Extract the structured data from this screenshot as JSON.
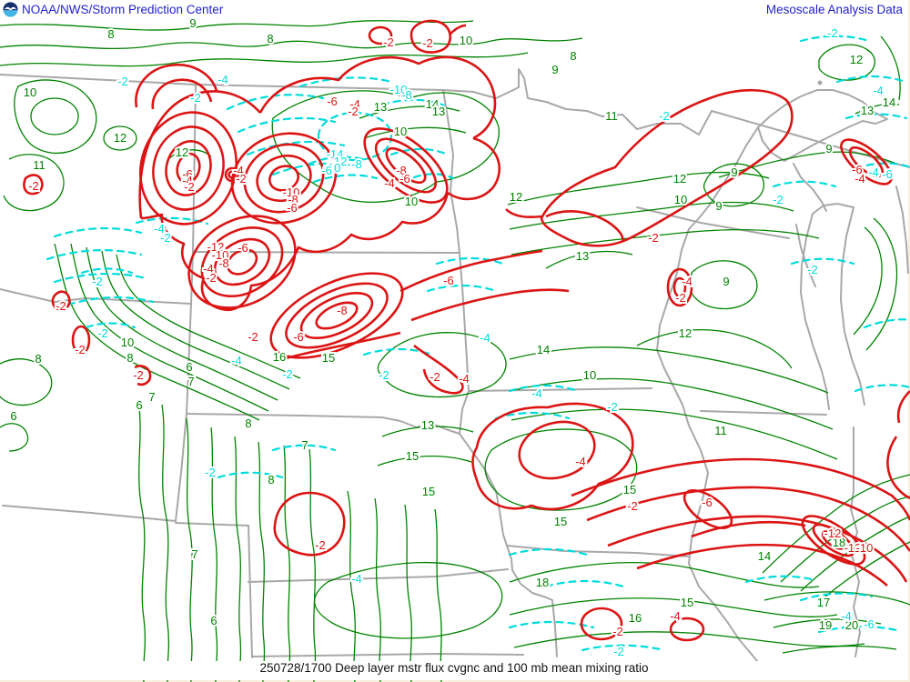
{
  "header": {
    "title": "NOAA/NWS/Storm Prediction Center",
    "right_title": "Mesoscale Analysis Data",
    "logo": "noaa-logo"
  },
  "caption": "250728/1700 Deep layer mstr flux cvgnc and 100 mb mean mixing ratio",
  "fields": {
    "red_solid_contours": "Deep layer moisture flux convergence",
    "green_solid_contours": "100 mb mean mixing ratio",
    "cyan_dashed_contours": "moisture flux divergence"
  },
  "colors": {
    "page_background": "#f8eedd",
    "map_background": "#ffffff",
    "header_blue": "#2222cc",
    "contour_green": "#008300",
    "contour_red": "#dc1414",
    "contour_cyan": "#00dcdc",
    "state_border_gray": "#a8a8a8",
    "caption_black": "#111111",
    "logo_navy": "#16306e",
    "logo_lightblue": "#45b4e6"
  },
  "contour_labels": {
    "green": [
      [
        "8",
        122,
        38
      ],
      [
        "9",
        212,
        26
      ],
      [
        "8",
        297,
        43
      ],
      [
        "10",
        512,
        45
      ],
      [
        "8",
        630,
        62
      ],
      [
        "9",
        610,
        77
      ],
      [
        "12",
        941,
        66
      ],
      [
        "10",
        33,
        102
      ],
      [
        "14",
        977,
        113
      ],
      [
        "13",
        953,
        122
      ],
      [
        "13",
        418,
        118
      ],
      [
        "14",
        475,
        115
      ],
      [
        "13",
        482,
        123
      ],
      [
        "11",
        672,
        128
      ],
      [
        "12",
        132,
        152
      ],
      [
        "10",
        440,
        145
      ],
      [
        "9",
        911,
        164
      ],
      [
        "12",
        200,
        168
      ],
      [
        "11",
        43,
        182
      ],
      [
        "9",
        807,
        190
      ],
      [
        "12",
        747,
        197
      ],
      [
        "10",
        748,
        220
      ],
      [
        "12",
        567,
        217
      ],
      [
        "10",
        452,
        222
      ],
      [
        "9",
        790,
        227
      ],
      [
        "13",
        640,
        282
      ],
      [
        "9",
        798,
        310
      ],
      [
        "12",
        753,
        367
      ],
      [
        "15",
        361,
        394
      ],
      [
        "16",
        307,
        393
      ],
      [
        "14",
        597,
        385
      ],
      [
        "8",
        42,
        395
      ],
      [
        "10",
        140,
        377
      ],
      [
        "8",
        143,
        394
      ],
      [
        "6",
        208,
        404
      ],
      [
        "7",
        210,
        420
      ],
      [
        "7",
        167,
        437
      ],
      [
        "6",
        153,
        446
      ],
      [
        "6",
        15,
        458
      ],
      [
        "8",
        273,
        466
      ],
      [
        "13",
        470,
        468
      ],
      [
        "7",
        335,
        490
      ],
      [
        "15",
        453,
        502
      ],
      [
        "8",
        298,
        528
      ],
      [
        "15",
        471,
        541
      ],
      [
        "15",
        692,
        539
      ],
      [
        "15",
        616,
        574
      ],
      [
        "14",
        840,
        612
      ],
      [
        "11",
        792,
        474
      ],
      [
        "10",
        648,
        413
      ],
      [
        "18",
        922,
        597
      ],
      [
        "18",
        596,
        641
      ],
      [
        "17",
        905,
        663
      ],
      [
        "19",
        907,
        688
      ],
      [
        "20",
        936,
        688
      ],
      [
        "15",
        755,
        663
      ],
      [
        "16",
        698,
        680
      ],
      [
        "7",
        214,
        610
      ],
      [
        "6",
        235,
        683
      ]
    ],
    "red": [
      [
        "-2",
        427,
        47
      ],
      [
        "-2",
        470,
        48
      ],
      [
        "-6",
        365,
        112
      ],
      [
        "-4",
        390,
        115
      ],
      [
        "-2",
        388,
        123
      ],
      [
        "-8",
        441,
        188
      ],
      [
        "-6",
        445,
        197
      ],
      [
        "-4",
        428,
        202
      ],
      [
        "-6",
        206,
        192
      ],
      [
        "-4",
        206,
        199
      ],
      [
        "-2",
        208,
        206
      ],
      [
        "-10",
        320,
        212
      ],
      [
        "-8",
        322,
        220
      ],
      [
        "-6",
        321,
        229
      ],
      [
        "-12",
        237,
        272
      ],
      [
        "-10",
        242,
        281
      ],
      [
        "-8",
        246,
        290
      ],
      [
        "-6",
        267,
        273
      ],
      [
        "-4",
        229,
        296
      ],
      [
        "-2",
        232,
        306
      ],
      [
        "-4",
        262,
        188
      ],
      [
        "-2",
        265,
        197
      ],
      [
        "-2",
        37,
        205
      ],
      [
        "-2",
        67,
        337
      ],
      [
        "-2",
        88,
        385
      ],
      [
        "-2",
        152,
        413
      ],
      [
        "-8",
        376,
        342
      ],
      [
        "-6",
        328,
        371
      ],
      [
        "-2",
        278,
        371
      ],
      [
        "-6",
        493,
        309
      ],
      [
        "-4",
        510,
        417
      ],
      [
        "-2",
        478,
        415
      ],
      [
        "-2",
        718,
        262
      ],
      [
        "-4",
        755,
        310
      ],
      [
        "-2",
        748,
        328
      ],
      [
        "-4",
        638,
        508
      ],
      [
        "-2",
        695,
        557
      ],
      [
        "-2",
        352,
        600
      ],
      [
        "-6",
        777,
        553
      ],
      [
        "-4",
        742,
        678
      ],
      [
        "-2",
        679,
        695
      ],
      [
        "-12",
        915,
        587
      ],
      [
        "-12",
        937,
        603
      ],
      [
        "-10",
        950,
        603
      ],
      [
        "-6",
        942,
        187
      ],
      [
        "-4",
        945,
        197
      ]
    ],
    "cyan": [
      [
        "-2",
        135,
        90
      ],
      [
        "-4",
        245,
        88
      ],
      [
        "-2",
        215,
        108
      ],
      [
        "-4",
        175,
        252
      ],
      [
        "-2",
        182,
        262
      ],
      [
        "-14",
        368,
        170
      ],
      [
        "-12",
        372,
        178
      ],
      [
        "-10",
        365,
        185
      ],
      [
        "-8",
        392,
        181
      ],
      [
        "-6",
        359,
        188
      ],
      [
        "-10",
        438,
        99
      ],
      [
        "-8",
        447,
        105
      ],
      [
        "-2",
        730,
        128
      ],
      [
        "-2",
        915,
        37
      ],
      [
        "-4",
        965,
        100
      ],
      [
        "-4",
        960,
        190
      ],
      [
        "-6",
        975,
        192
      ],
      [
        "-2",
        893,
        297
      ],
      [
        "-2",
        855,
        220
      ],
      [
        "-4",
        260,
        397
      ],
      [
        "-2",
        316,
        412
      ],
      [
        "-2",
        231,
        520
      ],
      [
        "-4",
        392,
        637
      ],
      [
        "-4",
        590,
        433
      ],
      [
        "-2",
        673,
        448
      ],
      [
        "-2",
        107,
        310
      ],
      [
        "-2",
        113,
        367
      ],
      [
        "-4",
        930,
        678
      ],
      [
        "-6",
        955,
        687
      ],
      [
        "-2",
        680,
        717
      ],
      [
        "-4",
        533,
        372
      ],
      [
        "-2",
        422,
        413
      ]
    ]
  }
}
